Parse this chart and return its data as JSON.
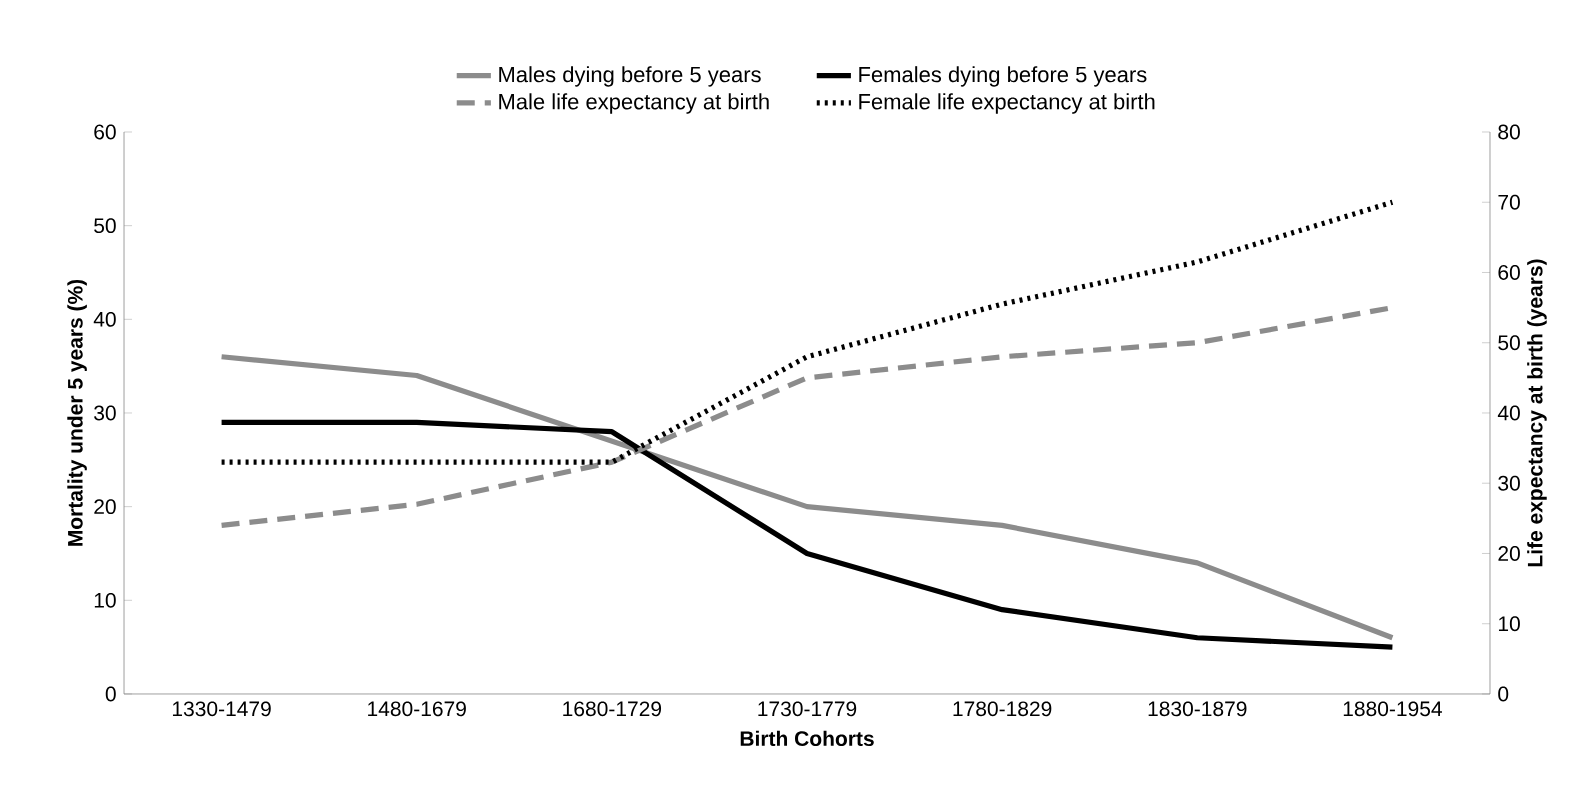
{
  "chart_data": {
    "type": "line",
    "xlabel": "Birth Cohorts",
    "ylabel": "Mortality under 5 years (%)",
    "y2label": "Life expectancy at birth (years)",
    "categories": [
      "1330-1479",
      "1480-1679",
      "1680-1729",
      "1730-1779",
      "1780-1829",
      "1830-1879",
      "1880-1954"
    ],
    "series": [
      {
        "name": "Males dying before 5 years",
        "color": "#8c8c8c",
        "line_style": "solid",
        "values": [
          36,
          34,
          27,
          20,
          18,
          14,
          6
        ]
      },
      {
        "name": "Females dying before 5 years",
        "color": "#000000",
        "line_style": "solid",
        "values": [
          29,
          29,
          28,
          15,
          9,
          6,
          5
        ]
      },
      {
        "name": "Male life expectancy at birth",
        "color": "#8c8c8c",
        "line_style": "dashed",
        "axis": "y2",
        "values": [
          24,
          27,
          33,
          45,
          48,
          50,
          55
        ]
      },
      {
        "name": "Female life expectancy at birth",
        "color": "#000000",
        "line_style": "dotted",
        "axis": "y2",
        "values": [
          33,
          33,
          33,
          48,
          55.5,
          61.5,
          70
        ]
      }
    ],
    "ylim": [
      0,
      60
    ],
    "yticks": [
      0,
      10,
      20,
      30,
      40,
      50,
      60
    ],
    "y2lim": [
      0,
      80
    ],
    "y2ticks": [
      0,
      10,
      20,
      30,
      40,
      50,
      60,
      70,
      80
    ],
    "legend": "top",
    "marker": "none",
    "grid": false
  }
}
